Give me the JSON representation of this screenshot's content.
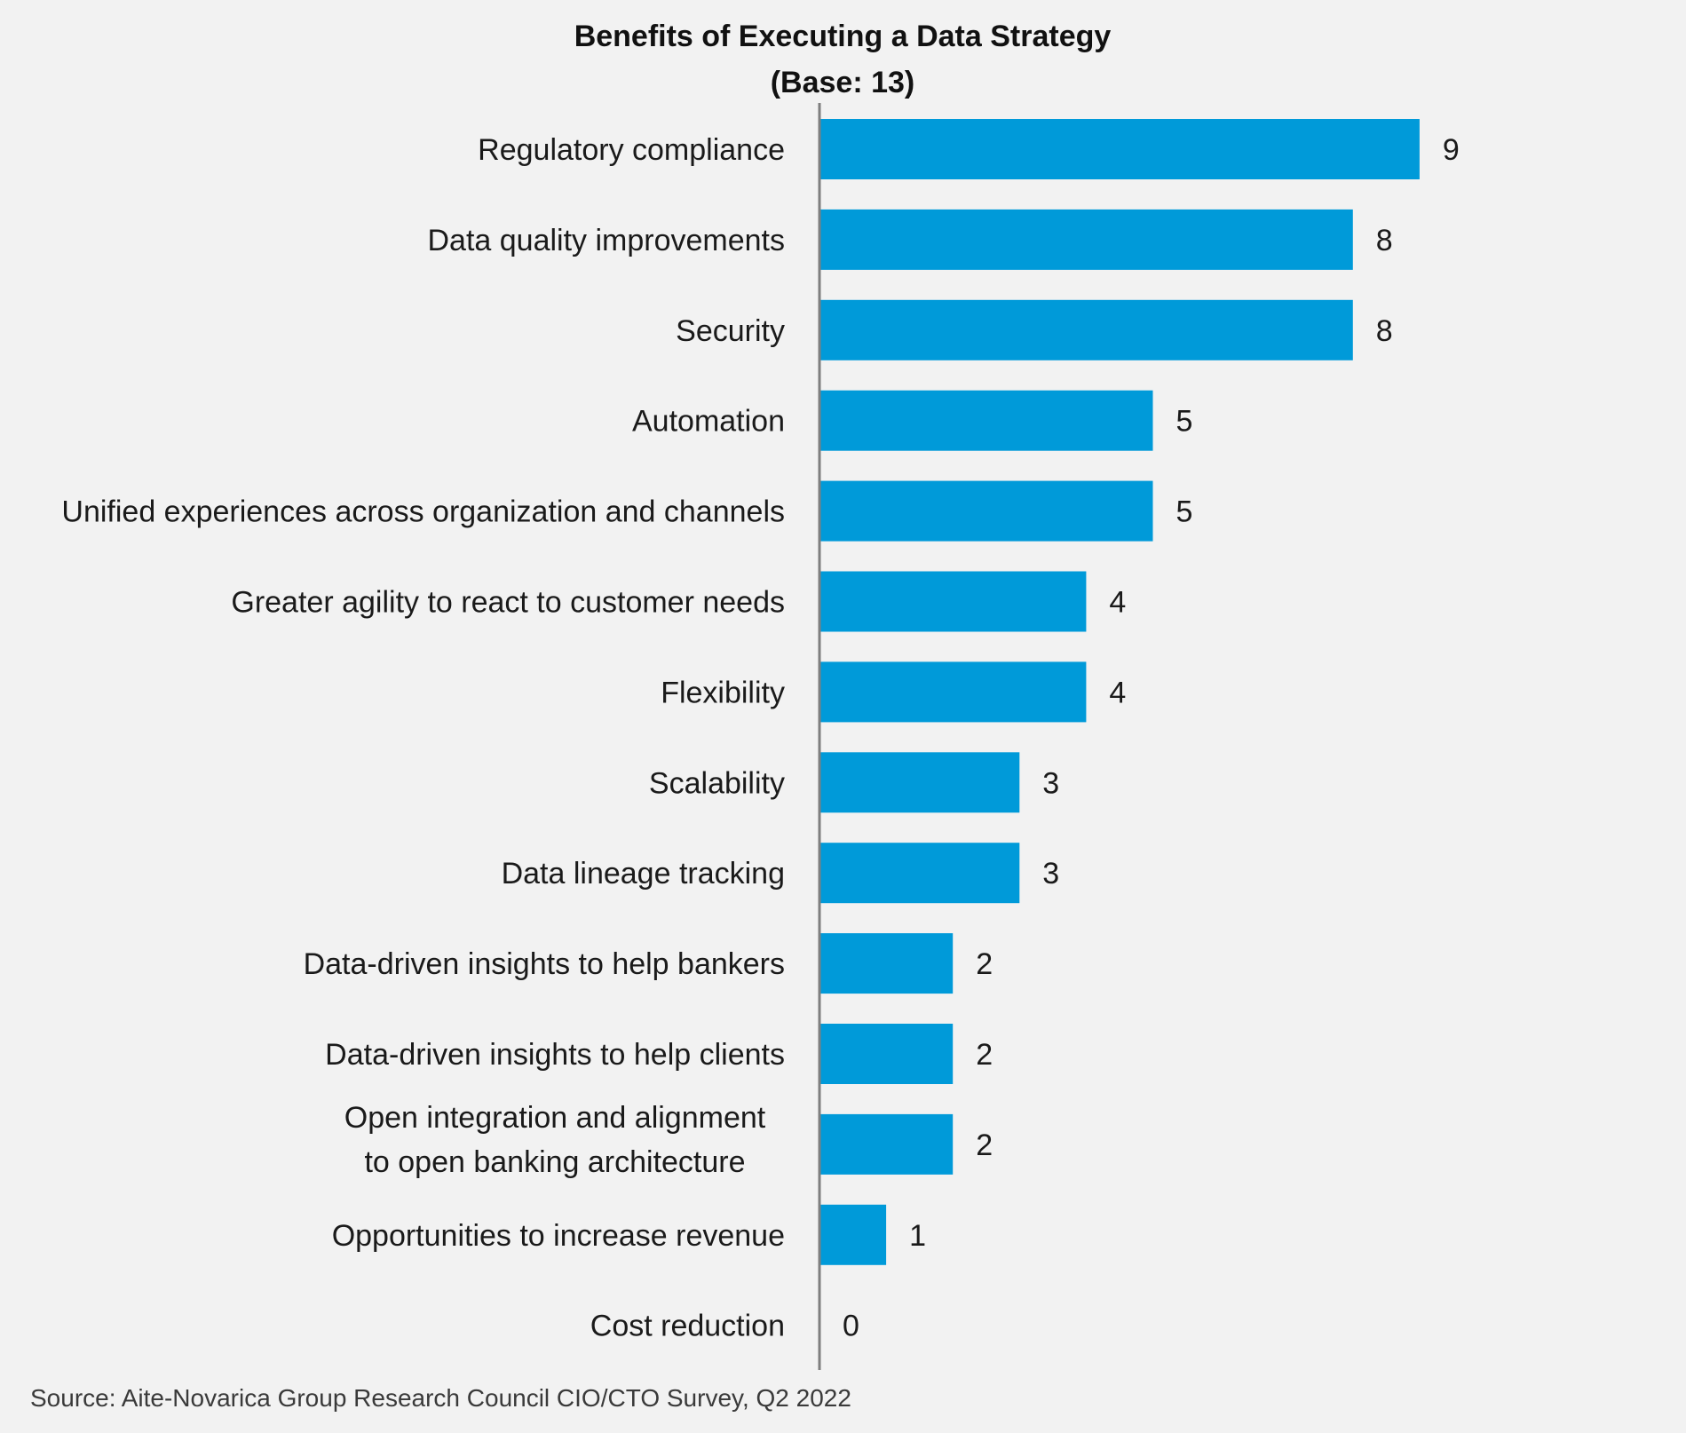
{
  "chart_data": {
    "type": "bar",
    "orientation": "horizontal",
    "title": "Benefits of Executing a Data Strategy",
    "subtitle": "(Base: 13)",
    "categories": [
      "Regulatory compliance",
      "Data quality improvements",
      "Security",
      "Automation",
      "Unified experiences across organization and channels",
      "Greater agility to react to customer needs",
      "Flexibility",
      "Scalability",
      "Data lineage tracking",
      "Data-driven insights to help bankers",
      "Data-driven insights to help clients",
      "Open integration and alignment to open banking architecture",
      "Opportunities to increase revenue",
      "Cost reduction"
    ],
    "category_lines": [
      [
        "Regulatory compliance"
      ],
      [
        "Data quality improvements"
      ],
      [
        "Security"
      ],
      [
        "Automation"
      ],
      [
        "Unified experiences across organization and channels"
      ],
      [
        "Greater agility to react to customer needs"
      ],
      [
        "Flexibility"
      ],
      [
        "Scalability"
      ],
      [
        "Data lineage tracking"
      ],
      [
        "Data-driven insights to help bankers"
      ],
      [
        "Data-driven insights to help clients"
      ],
      [
        "Open integration and alignment",
        "to open banking architecture"
      ],
      [
        "Opportunities to increase revenue"
      ],
      [
        "Cost reduction"
      ]
    ],
    "values": [
      9,
      8,
      8,
      5,
      5,
      4,
      4,
      3,
      3,
      2,
      2,
      2,
      1,
      0
    ],
    "xlim": [
      0,
      9
    ],
    "grid": false,
    "legend": "none",
    "bar_color": "#009ad9",
    "axis_color": "#7f7f7f",
    "source": "Source: Aite-Novarica Group Research Council CIO/CTO Survey, Q2 2022"
  }
}
